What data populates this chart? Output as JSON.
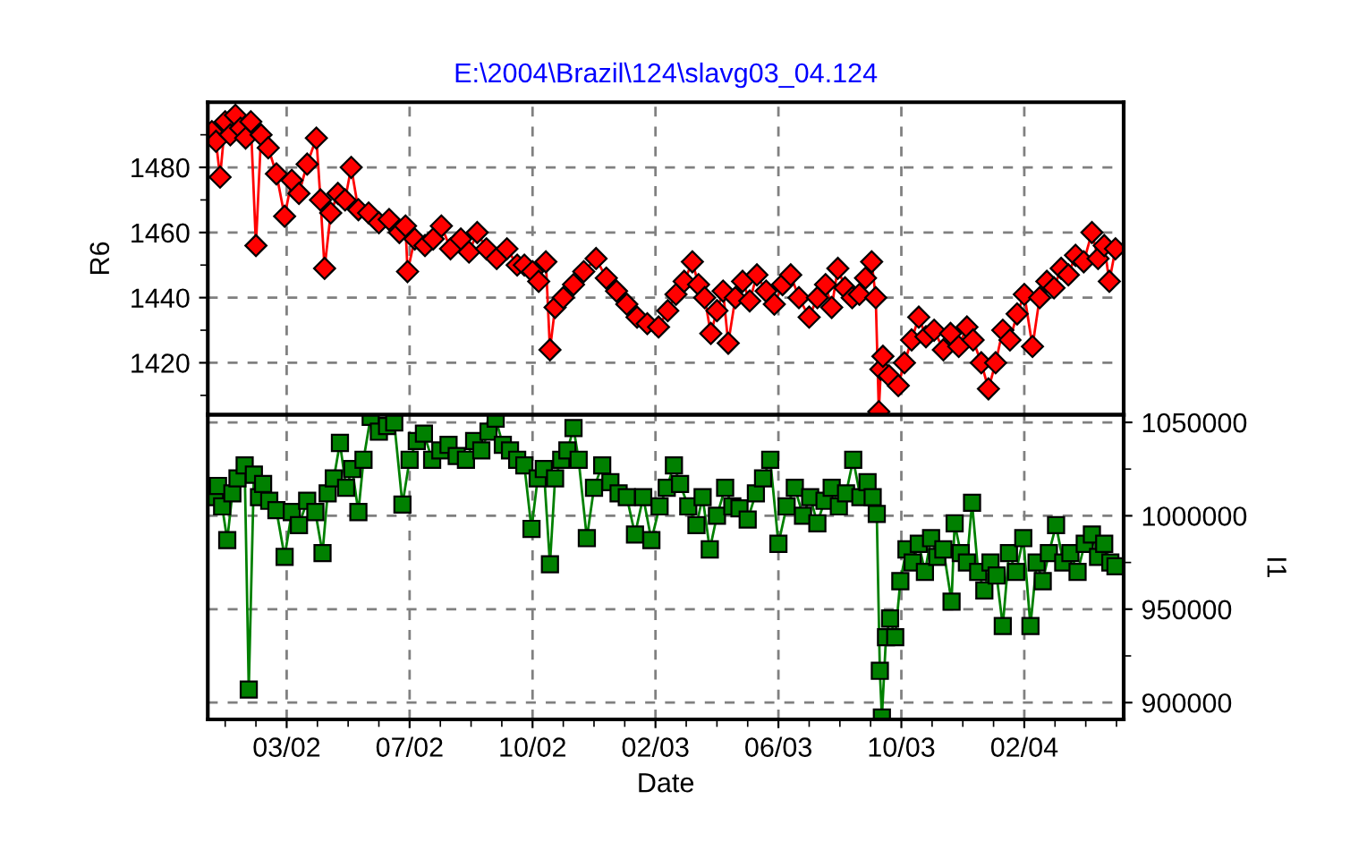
{
  "chart_data": [
    {
      "type": "line",
      "title": "E:\\2004\\Brazil\\124\\slavg03_04.124",
      "ylabel": "R6",
      "tick_labels": "y",
      "grid": true,
      "line_style": "solid",
      "xlim": [
        "2001-12-17",
        "2004-05-29"
      ],
      "xticks": [
        {
          "value": "2002-03-04",
          "label": null
        },
        {
          "value": "2002-07-02",
          "label": null
        },
        {
          "value": "2002-10-30",
          "label": null
        },
        {
          "value": "2003-02-27",
          "label": null
        },
        {
          "value": "2003-06-27",
          "label": null
        },
        {
          "value": "2003-10-25",
          "label": null
        },
        {
          "value": "2004-02-22",
          "label": null
        }
      ],
      "ylim": [
        1404,
        1500
      ],
      "yticks": [
        {
          "value": 1410,
          "label": null
        },
        1420,
        {
          "value": 1430,
          "label": null
        },
        1440,
        {
          "value": 1450,
          "label": null
        },
        1460,
        {
          "value": 1470,
          "label": null
        },
        1480,
        {
          "value": 1490,
          "label": null
        }
      ],
      "series": [
        {
          "color": "#ff0000",
          "marker": "diamond",
          "x": [
            "2001-12-21",
            "2001-12-25",
            "2001-12-29",
            "2002-01-03",
            "2002-01-08",
            "2002-01-13",
            "2002-01-18",
            "2002-01-23",
            "2002-01-28",
            "2002-02-02",
            "2002-02-07",
            "2002-02-14",
            "2002-02-22",
            "2002-03-02",
            "2002-03-09",
            "2002-03-16",
            "2002-03-24",
            "2002-04-02",
            "2002-04-06",
            "2002-04-10",
            "2002-04-16",
            "2002-04-23",
            "2002-04-30",
            "2002-05-06",
            "2002-05-13",
            "2002-05-23",
            "2002-06-02",
            "2002-06-12",
            "2002-06-22",
            "2002-06-28",
            "2002-06-30",
            "2002-07-07",
            "2002-07-17",
            "2002-07-25",
            "2002-08-02",
            "2002-08-11",
            "2002-08-21",
            "2002-08-29",
            "2002-09-06",
            "2002-09-15",
            "2002-09-25",
            "2002-10-05",
            "2002-10-15",
            "2002-10-22",
            "2002-10-30",
            "2002-11-05",
            "2002-11-12",
            "2002-11-16",
            "2002-11-21",
            "2002-11-29",
            "2002-12-09",
            "2002-12-19",
            "2002-12-31",
            "2003-01-10",
            "2003-01-20",
            "2003-01-30",
            "2003-02-09",
            "2003-02-19",
            "2003-03-02",
            "2003-03-11",
            "2003-03-19",
            "2003-03-27",
            "2003-04-04",
            "2003-04-10",
            "2003-04-16",
            "2003-04-22",
            "2003-04-28",
            "2003-05-04",
            "2003-05-09",
            "2003-05-16",
            "2003-05-23",
            "2003-05-30",
            "2003-06-06",
            "2003-06-15",
            "2003-06-23",
            "2003-07-01",
            "2003-07-09",
            "2003-07-17",
            "2003-07-27",
            "2003-08-04",
            "2003-08-12",
            "2003-08-18",
            "2003-08-24",
            "2003-08-31",
            "2003-09-07",
            "2003-09-14",
            "2003-09-20",
            "2003-09-26",
            "2003-09-30",
            "2003-10-03",
            "2003-10-05",
            "2003-10-07",
            "2003-10-13",
            "2003-10-22",
            "2003-10-28",
            "2003-11-04",
            "2003-11-11",
            "2003-11-18",
            "2003-11-26",
            "2003-12-05",
            "2003-12-12",
            "2003-12-20",
            "2003-12-28",
            "2004-01-03",
            "2004-01-11",
            "2004-01-18",
            "2004-01-25",
            "2004-02-01",
            "2004-02-08",
            "2004-02-15",
            "2004-02-22",
            "2004-03-01",
            "2004-03-08",
            "2004-03-15",
            "2004-03-22",
            "2004-03-29",
            "2004-04-05",
            "2004-04-12",
            "2004-04-20",
            "2004-04-28",
            "2004-05-04",
            "2004-05-10",
            "2004-05-15",
            "2004-05-21"
          ],
          "values": [
            1491,
            1488,
            1477,
            1494,
            1490,
            1496,
            1492,
            1489,
            1494,
            1456,
            1490,
            1486,
            1478,
            1465,
            1476,
            1472,
            1481,
            1489,
            1470,
            1449,
            1466,
            1472,
            1470,
            1480,
            1467,
            1466,
            1463,
            1464,
            1460,
            1462,
            1448,
            1458,
            1456,
            1458,
            1462,
            1455,
            1458,
            1454,
            1460,
            1455,
            1452,
            1455,
            1450,
            1450,
            1448,
            1445,
            1451,
            1424,
            1437,
            1440,
            1444,
            1448,
            1452,
            1446,
            1442,
            1438,
            1434,
            1432,
            1431,
            1436,
            1441,
            1445,
            1451,
            1444,
            1440,
            1429,
            1436,
            1442,
            1426,
            1440,
            1445,
            1439,
            1447,
            1442,
            1438,
            1444,
            1447,
            1440,
            1434,
            1440,
            1444,
            1437,
            1449,
            1443,
            1440,
            1441,
            1446,
            1451,
            1440,
            1405,
            1418,
            1422,
            1416,
            1413,
            1420,
            1427,
            1434,
            1428,
            1430,
            1424,
            1429,
            1425,
            1431,
            1427,
            1420,
            1412,
            1420,
            1430,
            1427,
            1435,
            1441,
            1425,
            1440,
            1445,
            1443,
            1449,
            1447,
            1453,
            1451,
            1460,
            1452,
            1456,
            1445,
            1455
          ]
        }
      ]
    },
    {
      "type": "line",
      "xlabel": "Date",
      "y2label": "I1",
      "grid": true,
      "line_style": "solid",
      "xlim": [
        "2001-12-17",
        "2004-05-29"
      ],
      "xticks": [
        {
          "value": "2002-01-03",
          "label": null
        },
        {
          "value": "2002-02-02",
          "label": null
        },
        {
          "value": "2002-03-04",
          "label": "03/02"
        },
        {
          "value": "2002-04-03",
          "label": null
        },
        {
          "value": "2002-05-03",
          "label": null
        },
        {
          "value": "2002-06-02",
          "label": null
        },
        {
          "value": "2002-07-02",
          "label": "07/02"
        },
        {
          "value": "2002-08-01",
          "label": null
        },
        {
          "value": "2002-08-31",
          "label": null
        },
        {
          "value": "2002-09-30",
          "label": null
        },
        {
          "value": "2002-10-30",
          "label": "10/02"
        },
        {
          "value": "2002-11-29",
          "label": null
        },
        {
          "value": "2002-12-29",
          "label": null
        },
        {
          "value": "2003-01-28",
          "label": null
        },
        {
          "value": "2003-02-27",
          "label": "02/03"
        },
        {
          "value": "2003-03-29",
          "label": null
        },
        {
          "value": "2003-04-28",
          "label": null
        },
        {
          "value": "2003-05-28",
          "label": null
        },
        {
          "value": "2003-06-27",
          "label": "06/03"
        },
        {
          "value": "2003-07-27",
          "label": null
        },
        {
          "value": "2003-08-26",
          "label": null
        },
        {
          "value": "2003-09-25",
          "label": null
        },
        {
          "value": "2003-10-25",
          "label": "10/03"
        },
        {
          "value": "2003-11-24",
          "label": null
        },
        {
          "value": "2003-12-24",
          "label": null
        },
        {
          "value": "2004-01-23",
          "label": null
        },
        {
          "value": "2004-02-22",
          "label": "02/04"
        },
        {
          "value": "2004-03-23",
          "label": null
        },
        {
          "value": "2004-04-22",
          "label": null
        },
        {
          "value": "2004-05-22",
          "label": null
        }
      ],
      "y2lim": [
        891000,
        1054000
      ],
      "y2ticks": [
        900000,
        {
          "value": 925000,
          "label": null
        },
        950000,
        {
          "value": 975000,
          "label": null
        },
        1000000,
        {
          "value": 1025000,
          "label": null
        },
        1050000
      ],
      "series": [
        {
          "color": "#008000",
          "marker": "square",
          "axis": "y2",
          "x": [
            "2001-12-24",
            "2001-12-27",
            "2001-12-31",
            "2002-01-05",
            "2002-01-10",
            "2002-01-15",
            "2002-01-22",
            "2002-01-26",
            "2002-01-31",
            "2002-02-05",
            "2002-02-09",
            "2002-02-15",
            "2002-02-22",
            "2002-03-02",
            "2002-03-09",
            "2002-03-16",
            "2002-03-24",
            "2002-04-01",
            "2002-04-08",
            "2002-04-13",
            "2002-04-19",
            "2002-04-25",
            "2002-05-01",
            "2002-05-07",
            "2002-05-13",
            "2002-05-18",
            "2002-05-25",
            "2002-06-02",
            "2002-06-10",
            "2002-06-17",
            "2002-06-25",
            "2002-07-02",
            "2002-07-09",
            "2002-07-16",
            "2002-07-24",
            "2002-08-01",
            "2002-08-09",
            "2002-08-17",
            "2002-08-26",
            "2002-09-03",
            "2002-09-10",
            "2002-09-17",
            "2002-09-24",
            "2002-10-01",
            "2002-10-08",
            "2002-10-15",
            "2002-10-22",
            "2002-10-29",
            "2002-11-04",
            "2002-11-10",
            "2002-11-16",
            "2002-11-21",
            "2002-11-27",
            "2002-12-03",
            "2002-12-09",
            "2002-12-14",
            "2002-12-22",
            "2002-12-29",
            "2003-01-06",
            "2003-01-14",
            "2003-01-22",
            "2003-01-30",
            "2003-02-07",
            "2003-02-15",
            "2003-02-23",
            "2003-03-03",
            "2003-03-10",
            "2003-03-17",
            "2003-03-23",
            "2003-03-31",
            "2003-04-08",
            "2003-04-14",
            "2003-04-21",
            "2003-04-28",
            "2003-05-06",
            "2003-05-13",
            "2003-05-20",
            "2003-05-28",
            "2003-06-05",
            "2003-06-12",
            "2003-06-19",
            "2003-06-27",
            "2003-07-05",
            "2003-07-13",
            "2003-07-21",
            "2003-07-28",
            "2003-08-04",
            "2003-08-11",
            "2003-08-18",
            "2003-08-25",
            "2003-09-01",
            "2003-09-08",
            "2003-09-15",
            "2003-09-22",
            "2003-09-27",
            "2003-10-01",
            "2003-10-04",
            "2003-10-06",
            "2003-10-10",
            "2003-10-14",
            "2003-10-19",
            "2003-10-24",
            "2003-10-30",
            "2003-11-05",
            "2003-11-11",
            "2003-11-17",
            "2003-11-23",
            "2003-11-29",
            "2003-12-05",
            "2003-12-13",
            "2003-12-16",
            "2003-12-22",
            "2003-12-28",
            "2004-01-02",
            "2004-01-08",
            "2004-01-14",
            "2004-01-20",
            "2004-01-26",
            "2004-02-01",
            "2004-02-07",
            "2004-02-14",
            "2004-02-21",
            "2004-02-28",
            "2004-03-05",
            "2004-03-11",
            "2004-03-17",
            "2004-03-24",
            "2004-03-31",
            "2004-04-07",
            "2004-04-14",
            "2004-04-21",
            "2004-04-28",
            "2004-05-04",
            "2004-05-10",
            "2004-05-16",
            "2004-05-21"
          ],
          "values": [
            1010000,
            1016000,
            1005000,
            987000,
            1012000,
            1020000,
            1027000,
            907000,
            1022000,
            1010000,
            1017000,
            1008000,
            1003000,
            978000,
            1002000,
            995000,
            1008000,
            1002000,
            980000,
            1012000,
            1020000,
            1039000,
            1015000,
            1025000,
            1002000,
            1030000,
            1053000,
            1045000,
            1048000,
            1050000,
            1006000,
            1030000,
            1040000,
            1044000,
            1030000,
            1035000,
            1038000,
            1032000,
            1030000,
            1040000,
            1035000,
            1045000,
            1052000,
            1038000,
            1035000,
            1030000,
            1027000,
            993000,
            1020000,
            1025000,
            974000,
            1020000,
            1030000,
            1035000,
            1047000,
            1030000,
            988000,
            1015000,
            1027000,
            1018000,
            1012000,
            1010000,
            990000,
            1010000,
            987000,
            1005000,
            1015000,
            1027000,
            1017000,
            1005000,
            995000,
            1010000,
            982000,
            1000000,
            1015000,
            1005000,
            1004000,
            998000,
            1012000,
            1020000,
            1030000,
            985000,
            1005000,
            1015000,
            1000000,
            1010000,
            996000,
            1008000,
            1015000,
            1005000,
            1012000,
            1030000,
            1010000,
            1018000,
            1010000,
            1001000,
            917000,
            892000,
            935000,
            945000,
            935000,
            965000,
            982000,
            975000,
            985000,
            970000,
            988000,
            978000,
            982000,
            954000,
            996000,
            980000,
            975000,
            1007000,
            970000,
            960000,
            975000,
            968000,
            941000,
            980000,
            970000,
            988000,
            941000,
            975000,
            965000,
            980000,
            995000,
            975000,
            980000,
            970000,
            985000,
            990000,
            978000,
            985000,
            975000,
            973000
          ]
        }
      ]
    }
  ]
}
